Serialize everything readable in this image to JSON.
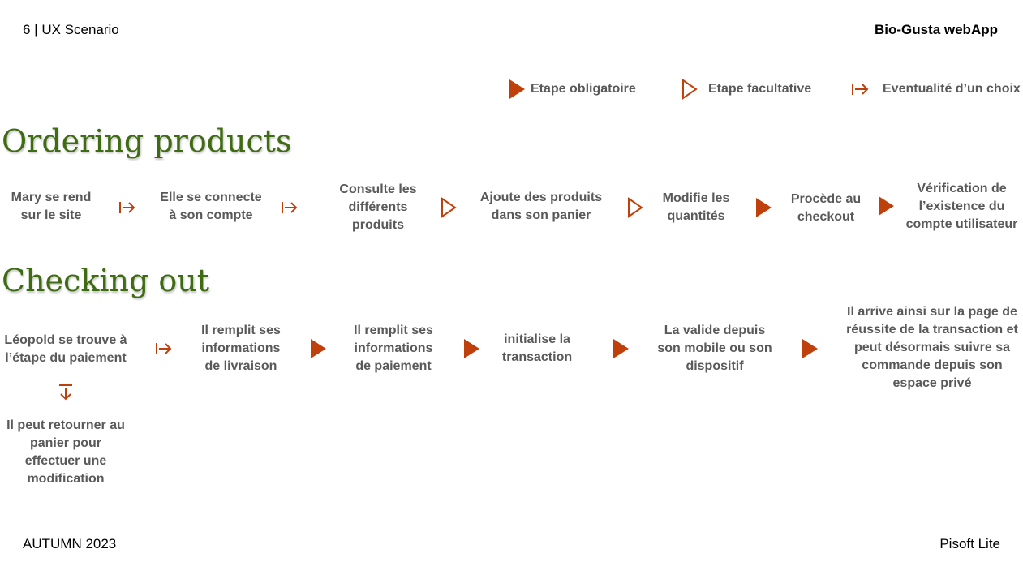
{
  "header": {
    "left": "6 | UX Scenario",
    "right": "Bio-Gusta webApp"
  },
  "legend": {
    "mandatory": "Etape obligatoire",
    "optional": "Etape facultative",
    "choice": "Eventualité d’un choix"
  },
  "ordering": {
    "title": "Ordering products",
    "steps": [
      "Mary se rend\nsur le site",
      "Elle se connecte\nà son compte",
      "Consulte les\ndifférents\nproduits",
      "Ajoute des produits\ndans son panier",
      "Modifie les\nquantités",
      "Procède au\ncheckout",
      "Vérification de\nl’existence du\ncompte utilisateur"
    ]
  },
  "checkout": {
    "title": "Checking out",
    "steps": [
      "Léopold se trouve à\nl’étape du paiement",
      "Il remplit ses\ninformations\nde livraison",
      "Il remplit ses\ninformations\nde paiement",
      "initialise la\ntransaction",
      "La valide depuis\nson mobile ou son\ndispositif",
      "Il arrive ainsi sur la page de\nréussite de la transaction et\npeut désormais suivre sa\ncommande depuis son\nespace privé"
    ],
    "branch": "Il peut retourner au\npanier pour\neffectuer une\nmodification"
  },
  "footer": {
    "left": "AUTUMN 2023",
    "right": "Pisoft Lite"
  },
  "colors": {
    "accent": "#c0400c",
    "title_green": "#3f6b13",
    "text": "#595959"
  },
  "icons": {
    "mandatory": "filled-triangle-icon",
    "optional": "outline-triangle-icon",
    "choice": "bar-arrow-right-icon",
    "branch": "bar-arrow-down-icon"
  }
}
